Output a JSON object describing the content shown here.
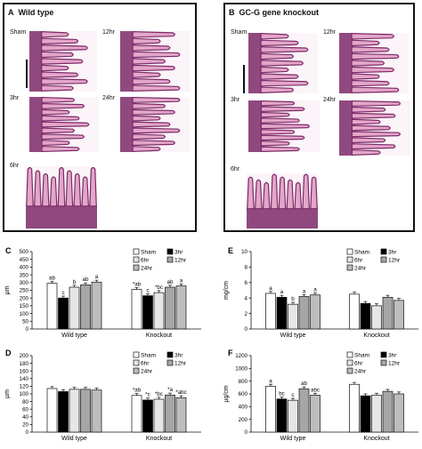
{
  "panels": {
    "A": {
      "letter": "A",
      "title": "Wild type",
      "labels": [
        "Sham",
        "12hr",
        "3hr",
        "24hr",
        "6hr"
      ]
    },
    "B": {
      "letter": "B",
      "title": "GC-G gene knockout",
      "labels": [
        "Sham",
        "12hr",
        "3hr",
        "24hr",
        "6hr"
      ]
    }
  },
  "legend": {
    "items": [
      "Sham",
      "3hr",
      "6hr",
      "12hr",
      "24hr"
    ]
  },
  "colors": {
    "sham": "#ffffff",
    "3hr": "#000000",
    "6hr": "#e6e6e6",
    "12hr": "#a6a6a6",
    "24hr": "#bdbdbd",
    "tissue_dark": "#7d2a6a",
    "tissue_light": "#e3a6c8"
  },
  "chart_data": [
    {
      "panel": "C",
      "type": "bar",
      "ylabel": "µm",
      "ylim": [
        0,
        500
      ],
      "yticks": [
        0,
        50,
        100,
        150,
        200,
        250,
        300,
        350,
        400,
        450,
        500
      ],
      "categories": [
        "Wild type",
        "Knockout"
      ],
      "series": [
        {
          "name": "Sham",
          "values": [
            295,
            255
          ]
        },
        {
          "name": "3hr",
          "values": [
            200,
            215
          ]
        },
        {
          "name": "6hr",
          "values": [
            270,
            235
          ]
        },
        {
          "name": "12hr",
          "values": [
            285,
            270
          ]
        },
        {
          "name": "24hr",
          "values": [
            303,
            278
          ]
        }
      ],
      "annotations": [
        [
          "ab",
          "c",
          "b",
          "ab",
          "a"
        ],
        [
          "*ab",
          "c",
          "*bc",
          "ab",
          "a"
        ]
      ]
    },
    {
      "panel": "D",
      "type": "bar",
      "ylabel": "µm",
      "ylim": [
        0,
        200
      ],
      "yticks": [
        0,
        20,
        40,
        60,
        80,
        100,
        120,
        140,
        160,
        180,
        200
      ],
      "categories": [
        "Wild type",
        "Knockout"
      ],
      "series": [
        {
          "name": "Sham",
          "values": [
            114,
            96
          ]
        },
        {
          "name": "3hr",
          "values": [
            106,
            84
          ]
        },
        {
          "name": "6hr",
          "values": [
            112,
            86
          ]
        },
        {
          "name": "12hr",
          "values": [
            112,
            97
          ]
        },
        {
          "name": "24hr",
          "values": [
            110,
            90
          ]
        }
      ],
      "annotations": [
        [
          "",
          "",
          "",
          "",
          ""
        ],
        [
          "*ab",
          "*c",
          "*bc",
          "*a",
          "*abc"
        ]
      ]
    },
    {
      "panel": "E",
      "type": "bar",
      "ylabel": "mg/cm",
      "ylim": [
        0,
        10
      ],
      "yticks": [
        0,
        2,
        4,
        6,
        8,
        10
      ],
      "categories": [
        "Wild type",
        "Knockout"
      ],
      "series": [
        {
          "name": "Sham",
          "values": [
            4.6,
            4.5
          ]
        },
        {
          "name": "3hr",
          "values": [
            4.1,
            3.3
          ]
        },
        {
          "name": "6hr",
          "values": [
            3.2,
            3.0
          ]
        },
        {
          "name": "12hr",
          "values": [
            4.2,
            4.1
          ]
        },
        {
          "name": "24hr",
          "values": [
            4.4,
            3.7
          ]
        }
      ],
      "annotations": [
        [
          "a",
          "a",
          "b",
          "a",
          "a"
        ],
        [
          "",
          "",
          "",
          "",
          ""
        ]
      ]
    },
    {
      "panel": "F",
      "type": "bar",
      "ylabel": "µg/cm",
      "ylim": [
        0,
        1200
      ],
      "yticks": [
        0,
        200,
        400,
        600,
        800,
        1000,
        1200
      ],
      "categories": [
        "Wild type",
        "Knockout"
      ],
      "series": [
        {
          "name": "Sham",
          "values": [
            720,
            750
          ]
        },
        {
          "name": "3hr",
          "values": [
            520,
            570
          ]
        },
        {
          "name": "6hr",
          "values": [
            500,
            580
          ]
        },
        {
          "name": "12hr",
          "values": [
            680,
            640
          ]
        },
        {
          "name": "24hr",
          "values": [
            580,
            600
          ]
        }
      ],
      "annotations": [
        [
          "a",
          "bc",
          "c",
          "ab",
          "abc"
        ],
        [
          "",
          "",
          "",
          "",
          ""
        ]
      ]
    }
  ]
}
